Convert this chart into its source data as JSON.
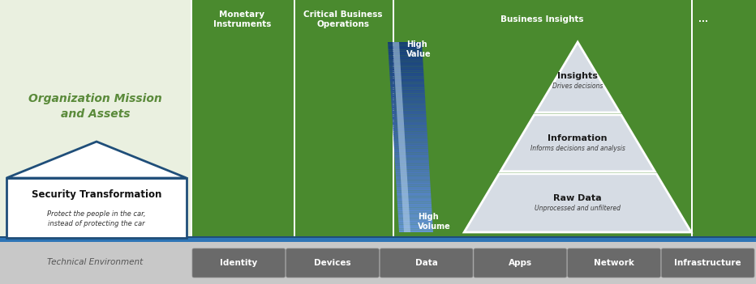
{
  "bg_color": "#e8e8e8",
  "left_panel_color": "#eaf0e0",
  "green_panel_color": "#4a8a2e",
  "bottom_bar_color": "#c0c0c0",
  "blue_line_color1": "#2e75b6",
  "blue_line_color2": "#1f4e79",
  "pyramid_fill": "#d6dce4",
  "org_mission_text": "Organization Mission\nand Assets",
  "security_transform_title": "Security Transformation",
  "security_transform_sub": "Protect the people in the car,\ninstead of protecting the car",
  "tech_env_label": "Technical Environment",
  "col1_header": "Monetary\nInstruments",
  "col2_header": "Critical Business\nOperations",
  "col3_header": "Business Insights",
  "col4_header": "...",
  "high_value_label": "High\nValue",
  "high_volume_label": "High\nVolume",
  "pyramid_levels": [
    {
      "label": "Insights",
      "sublabel": "Drives decisions"
    },
    {
      "label": "Information",
      "sublabel": "Informs decisions and analysis"
    },
    {
      "label": "Raw Data",
      "sublabel": "Unprocessed and unfiltered"
    }
  ],
  "tech_buttons": [
    "Identity",
    "Devices",
    "Data",
    "Apps",
    "Network",
    "Infrastructure"
  ],
  "figsize": [
    9.32,
    3.51
  ],
  "dpi": 100
}
